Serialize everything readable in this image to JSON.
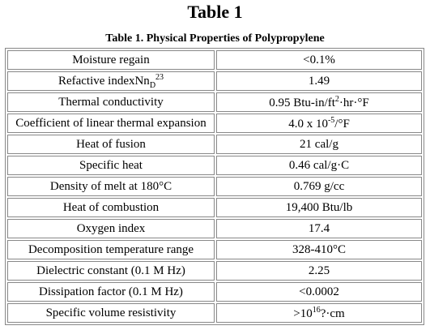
{
  "header": {
    "title": "Table 1"
  },
  "table": {
    "caption": "Table 1. Physical Properties of Polypropylene",
    "rows": [
      [
        [
          "Moisture regain"
        ],
        [
          "<0.1%"
        ]
      ],
      [
        [
          "Refactive indexNn",
          {
            "sub": "D"
          },
          {
            "sup": "23"
          }
        ],
        [
          "1.49"
        ]
      ],
      [
        [
          "Thermal conductivity"
        ],
        [
          "0.95 Btu-in/ft",
          {
            "sup": "2"
          },
          "·hr·°F"
        ]
      ],
      [
        [
          "Coefficient of linear thermal expansion"
        ],
        [
          "4.0 x 10",
          {
            "sup": "-5"
          },
          "/°F"
        ]
      ],
      [
        [
          "Heat of fusion"
        ],
        [
          "21 cal/g"
        ]
      ],
      [
        [
          "Specific heat"
        ],
        [
          "0.46 cal/g·C"
        ]
      ],
      [
        [
          "Density of melt at 180°C"
        ],
        [
          "0.769 g/cc"
        ]
      ],
      [
        [
          "Heat of combustion"
        ],
        [
          "19,400 Btu/lb"
        ]
      ],
      [
        [
          "Oxygen index"
        ],
        [
          "17.4"
        ]
      ],
      [
        [
          "Decomposition temperature range"
        ],
        [
          "328-410°C"
        ]
      ],
      [
        [
          "Dielectric constant (0.1 M Hz)"
        ],
        [
          "2.25"
        ]
      ],
      [
        [
          "Dissipation factor (0.1 M Hz)"
        ],
        [
          "<0.0002"
        ]
      ],
      [
        [
          "Specific volume resistivity"
        ],
        [
          ">10",
          {
            "sup": "16"
          },
          "?·cm"
        ]
      ]
    ]
  }
}
